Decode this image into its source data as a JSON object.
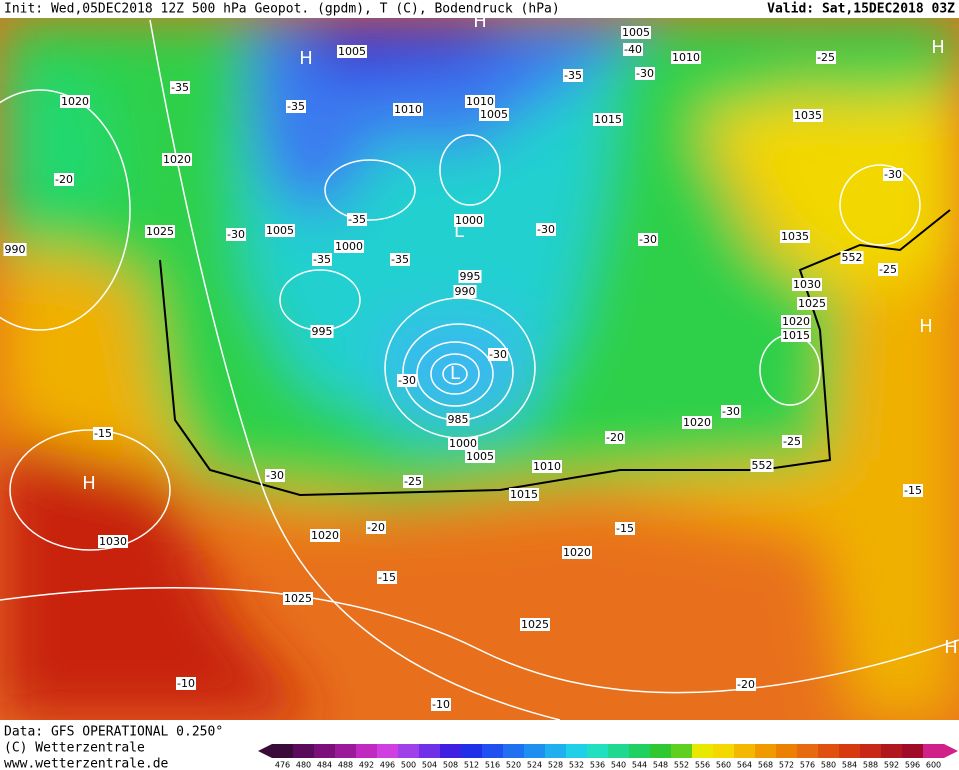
{
  "header": {
    "title": "Init: Wed,05DEC2018 12Z 500 hPa Geopot. (gpdm), T (C), Bodendruck (hPa)",
    "valid": "Valid: Sat,15DEC2018 03Z"
  },
  "footer": {
    "source": "Data: GFS OPERATIONAL 0.250°",
    "copyright": "(C) Wetterzentrale",
    "url": "www.wetterzentrale.de"
  },
  "colorbar": {
    "labels": [
      476,
      480,
      484,
      488,
      492,
      496,
      500,
      504,
      508,
      512,
      516,
      520,
      524,
      528,
      532,
      536,
      540,
      544,
      548,
      552,
      556,
      560,
      564,
      568,
      572,
      576,
      580,
      584,
      588,
      592,
      596,
      600
    ]
  },
  "map": {
    "labels": [
      "1005",
      "1005",
      "1010",
      "-40",
      "-35",
      "-30",
      "-25",
      "1020",
      "-35",
      "-35",
      "1010",
      "1010",
      "1005",
      "1015",
      "1035",
      "1020",
      "-20",
      "-30",
      "-35",
      "1000",
      "-30",
      "-30",
      "1035",
      "1025",
      "-30",
      "1005",
      "1000",
      "-35",
      "-35",
      "990",
      "552",
      "-25",
      "995",
      "990",
      "1030",
      "1025",
      "1020",
      "1015",
      "995",
      "-30",
      "-30",
      "985",
      "-15",
      "1000",
      "1005",
      "-20",
      "1020",
      "-30",
      "-25",
      "1010",
      "-30",
      "-25",
      "552",
      "1015",
      "-15",
      "1030",
      "1020",
      "-20",
      "-15",
      "1020",
      "-15",
      "1025",
      "1025",
      "-10",
      "-10",
      "-20"
    ],
    "highs": [
      "H",
      "H",
      "H",
      "H",
      "H",
      "H"
    ],
    "lows": [
      "L",
      "L"
    ]
  }
}
